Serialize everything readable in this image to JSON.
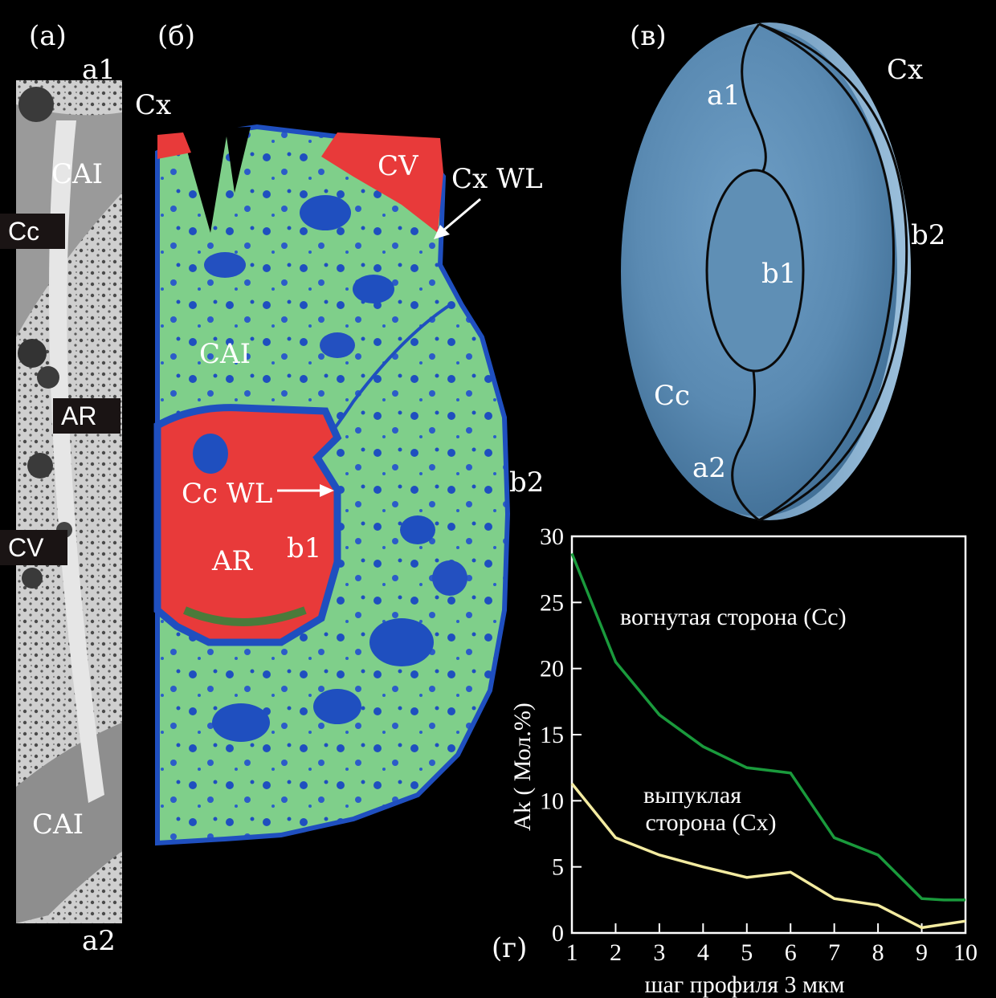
{
  "panels": {
    "a": {
      "letter": "(а)",
      "top": "a1",
      "bottom": "a2",
      "cai_top": "CAI",
      "cai_bottom": "CAI",
      "cc": "Cc",
      "ar": "AR",
      "cv": "CV"
    },
    "b": {
      "letter": "(б)",
      "cx": "Cx",
      "cv": "CV",
      "cxwl": "Cx WL",
      "cai": "CAI",
      "ccwl": "Cc WL",
      "ar": "AR",
      "b1": "b1",
      "b2": "b2"
    },
    "c": {
      "letter": "(в)",
      "a1": "a1",
      "cx": "Cx",
      "b2": "b2",
      "b1": "b1",
      "cc": "Cc",
      "a2": "a2"
    },
    "d": {
      "letter": "(г)"
    }
  },
  "colors": {
    "mapGreen": "#7fcf8a",
    "mapBlue": "#1f4fbf",
    "mapRed": "#e83a3a",
    "discBlue": "#5f8fb5",
    "concave": "#1a9a3c",
    "convex": "#f3eba0"
  },
  "chart_data": {
    "type": "line",
    "xlabel": "шаг профиля 3 мкм",
    "ylabel": "Ak ( Мол.%)",
    "xlim": [
      1,
      10
    ],
    "ylim": [
      0,
      30
    ],
    "xticks": [
      1,
      2,
      3,
      4,
      5,
      6,
      7,
      8,
      9,
      10
    ],
    "yticks": [
      0,
      5,
      10,
      15,
      20,
      25,
      30
    ],
    "series": [
      {
        "name": "вогнутая сторона (Cc)",
        "x": [
          1,
          2,
          3,
          4,
          5,
          6,
          7,
          8,
          9,
          9.5,
          10
        ],
        "y": [
          28.7,
          20.5,
          16.5,
          14.1,
          12.5,
          12.1,
          7.2,
          5.9,
          2.6,
          2.5,
          2.5
        ]
      },
      {
        "name": "выпуклая сторона (Cx)",
        "label_lines": [
          "выпуклая",
          "сторона (Cx)"
        ],
        "x": [
          1,
          2,
          3,
          4,
          5,
          6,
          7,
          8,
          9,
          10
        ],
        "y": [
          11.3,
          7.2,
          5.9,
          5.0,
          4.2,
          4.6,
          2.6,
          2.1,
          0.4,
          0.9
        ]
      }
    ]
  }
}
